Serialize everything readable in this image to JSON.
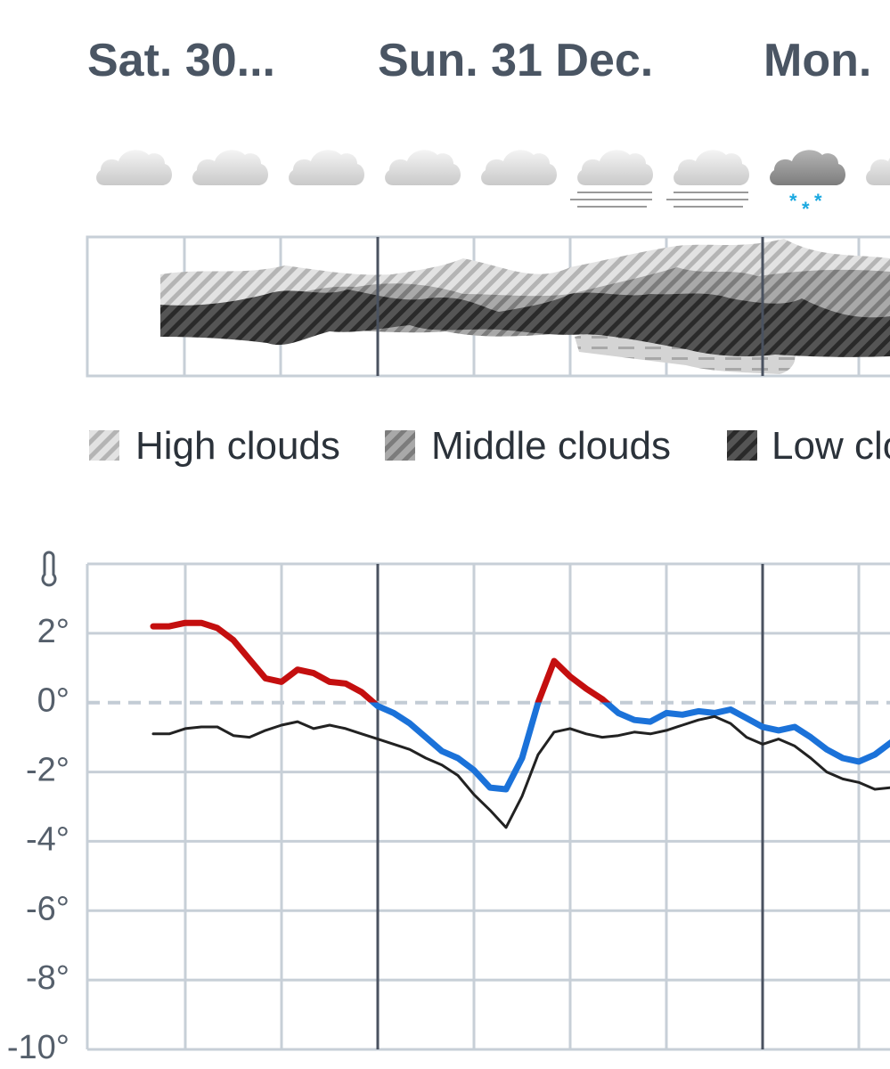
{
  "days": [
    "Sat. 30...",
    "Sun. 31 Dec.",
    "Mon."
  ],
  "cloud_legend": [
    "High clouds",
    "Middle clouds",
    "Low clouds"
  ],
  "chart_data": {
    "type": "line",
    "x": [
      -14,
      -13,
      -12,
      -11,
      -10,
      -9,
      -8,
      -7,
      -6,
      -5,
      -4,
      -3,
      -2,
      -1,
      0,
      1,
      2,
      3,
      4,
      5,
      6,
      7,
      8,
      9,
      10,
      11,
      12,
      13,
      14,
      15,
      16,
      17,
      18,
      19,
      20,
      21,
      22,
      23,
      24,
      25,
      26,
      27,
      28,
      29,
      30,
      31,
      32
    ],
    "series": [
      {
        "colors": {
          "above": "#c40f0f",
          "below": "#1b72d9"
        },
        "values": [
          2.2,
          2.2,
          2.3,
          2.3,
          2.15,
          1.8,
          1.25,
          0.7,
          0.6,
          0.95,
          0.85,
          0.6,
          0.55,
          0.3,
          -0.1,
          -0.3,
          -0.6,
          -1.0,
          -1.4,
          -1.6,
          -1.95,
          -2.45,
          -2.5,
          -1.6,
          0.0,
          1.2,
          0.75,
          0.4,
          0.1,
          -0.3,
          -0.5,
          -0.55,
          -0.3,
          -0.35,
          -0.25,
          -0.3,
          -0.2,
          -0.45,
          -0.7,
          -0.8,
          -0.7,
          -1.0,
          -1.35,
          -1.6,
          -1.7,
          -1.5,
          -1.15
        ]
      },
      {
        "color": "#222222",
        "values": [
          -0.9,
          -0.9,
          -0.75,
          -0.7,
          -0.7,
          -0.95,
          -1.0,
          -0.8,
          -0.65,
          -0.55,
          -0.75,
          -0.65,
          -0.75,
          -0.9,
          -1.05,
          -1.2,
          -1.35,
          -1.6,
          -1.8,
          -2.1,
          -2.65,
          -3.1,
          -3.6,
          -2.7,
          -1.5,
          -0.85,
          -0.75,
          -0.9,
          -1.0,
          -0.95,
          -0.85,
          -0.9,
          -0.8,
          -0.65,
          -0.5,
          -0.4,
          -0.6,
          -1.0,
          -1.2,
          -1.05,
          -1.25,
          -1.6,
          -2.0,
          -2.2,
          -2.3,
          -2.5,
          -2.45
        ]
      }
    ],
    "xlim": [
      -18,
      32
    ],
    "xticks": [
      -18,
      -12,
      -6,
      0,
      6,
      12,
      18,
      24,
      30
    ],
    "day_boundaries": [
      0,
      24
    ],
    "ylim": [
      -10,
      4
    ],
    "yticks": [
      {
        "value": -10,
        "label": "-10°"
      },
      {
        "value": -8,
        "label": "-8°"
      },
      {
        "value": -6,
        "label": "-6°"
      },
      {
        "value": -4,
        "label": "-4°"
      },
      {
        "value": -2,
        "label": "-2°"
      },
      {
        "value": 0,
        "label": "0°"
      },
      {
        "value": 2,
        "label": "2°"
      }
    ],
    "reference_line": 0,
    "grid": true
  }
}
